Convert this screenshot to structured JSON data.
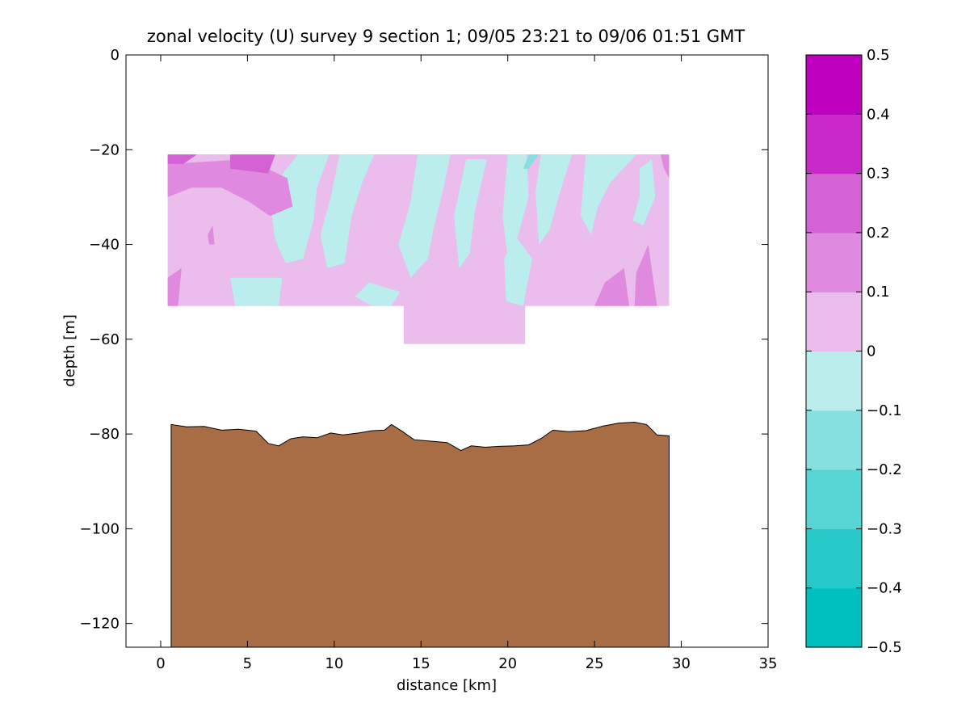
{
  "chart_data": {
    "type": "heatmap",
    "title": "zonal velocity (U) survey 9 section 1; 09/05 23:21 to 09/06 01:51 GMT",
    "xlabel": "distance [km]",
    "ylabel": "depth [m]",
    "xlim": [
      -2,
      35
    ],
    "ylim": [
      -125,
      0
    ],
    "xticks": [
      0,
      5,
      10,
      15,
      20,
      25,
      30,
      35
    ],
    "yticks": [
      0,
      -20,
      -40,
      -60,
      -80,
      -100,
      -120
    ],
    "grid": false,
    "data_extent": {
      "x_range": [
        0.4,
        29.3
      ],
      "depth_range": [
        -21,
        -53
      ],
      "deep_segment_x_range": [
        14,
        21
      ],
      "deep_segment_depth_min": -61
    },
    "background_class_value": 0.05,
    "regions": [
      {
        "value": -0.05,
        "points": [
          [
            14.8,
            -21
          ],
          [
            16.7,
            -21
          ],
          [
            16.3,
            -28
          ],
          [
            15.7,
            -37
          ],
          [
            15.4,
            -43
          ],
          [
            14.4,
            -47
          ],
          [
            13.7,
            -40
          ],
          [
            14.4,
            -31
          ]
        ]
      },
      {
        "value": -0.05,
        "points": [
          [
            10.3,
            -21
          ],
          [
            12.3,
            -21
          ],
          [
            11.6,
            -27
          ],
          [
            11.0,
            -34
          ],
          [
            10.6,
            -44
          ],
          [
            9.6,
            -45
          ],
          [
            9.2,
            -38
          ],
          [
            9.8,
            -30
          ]
        ]
      },
      {
        "value": -0.05,
        "points": [
          [
            6.2,
            -29
          ],
          [
            7.9,
            -21
          ],
          [
            9.7,
            -21
          ],
          [
            9.0,
            -28
          ],
          [
            8.8,
            -35
          ],
          [
            8.2,
            -43
          ],
          [
            7.2,
            -44
          ],
          [
            6.6,
            -39
          ]
        ]
      },
      {
        "value": -0.05,
        "points": [
          [
            17.6,
            -22
          ],
          [
            18.8,
            -22
          ],
          [
            18.1,
            -33
          ],
          [
            17.8,
            -42
          ],
          [
            17.2,
            -45
          ],
          [
            16.9,
            -34
          ]
        ]
      },
      {
        "value": -0.05,
        "points": [
          [
            20.0,
            -21
          ],
          [
            21.1,
            -21
          ],
          [
            21.2,
            -30
          ],
          [
            20.6,
            -38
          ],
          [
            20.0,
            -43
          ],
          [
            19.7,
            -34
          ]
        ]
      },
      {
        "value": -0.05,
        "points": [
          [
            21.9,
            -21
          ],
          [
            23.7,
            -21
          ],
          [
            23.0,
            -29
          ],
          [
            22.4,
            -37
          ],
          [
            21.8,
            -40
          ],
          [
            21.6,
            -29
          ]
        ]
      },
      {
        "value": -0.05,
        "points": [
          [
            24.5,
            -21
          ],
          [
            27.4,
            -21
          ],
          [
            25.9,
            -27
          ],
          [
            25.2,
            -32
          ],
          [
            24.8,
            -38
          ],
          [
            24.2,
            -34
          ]
        ]
      },
      {
        "value": -0.05,
        "points": [
          [
            27.6,
            -24
          ],
          [
            28.3,
            -22
          ],
          [
            28.5,
            -30
          ],
          [
            27.8,
            -36
          ],
          [
            27.2,
            -35
          ],
          [
            27.6,
            -30
          ]
        ]
      },
      {
        "value": -0.05,
        "points": [
          [
            4.0,
            -47
          ],
          [
            7.0,
            -47
          ],
          [
            6.8,
            -53
          ],
          [
            4.3,
            -53
          ]
        ]
      },
      {
        "value": -0.05,
        "points": [
          [
            12.0,
            -48
          ],
          [
            13.8,
            -50
          ],
          [
            13.3,
            -53
          ],
          [
            12.2,
            -53
          ],
          [
            11.2,
            -51
          ]
        ]
      },
      {
        "value": -0.05,
        "points": [
          [
            19.8,
            -43
          ],
          [
            20.4,
            -38
          ],
          [
            21.4,
            -43
          ],
          [
            20.9,
            -53
          ],
          [
            19.9,
            -52
          ]
        ]
      },
      {
        "value": -0.15,
        "points": [
          [
            21.2,
            -21
          ],
          [
            21.8,
            -21
          ],
          [
            21.2,
            -24
          ],
          [
            20.9,
            -24
          ]
        ]
      },
      {
        "value": 0.15,
        "points": [
          [
            0.4,
            -23
          ],
          [
            5.0,
            -22
          ],
          [
            7.3,
            -26
          ],
          [
            7.6,
            -32
          ],
          [
            6.3,
            -34
          ],
          [
            5.1,
            -31
          ],
          [
            3.5,
            -28
          ],
          [
            1.8,
            -28
          ],
          [
            0.4,
            -30
          ]
        ]
      },
      {
        "value": 0.15,
        "points": [
          [
            0.4,
            -47
          ],
          [
            1.2,
            -45
          ],
          [
            1.0,
            -53
          ],
          [
            0.4,
            -53
          ]
        ]
      },
      {
        "value": 0.15,
        "points": [
          [
            25.0,
            -53
          ],
          [
            25.6,
            -48
          ],
          [
            26.7,
            -45
          ],
          [
            27.0,
            -53
          ]
        ]
      },
      {
        "value": 0.15,
        "points": [
          [
            27.3,
            -53
          ],
          [
            27.4,
            -46
          ],
          [
            28.1,
            -40
          ],
          [
            28.6,
            -53
          ]
        ]
      },
      {
        "value": 0.15,
        "points": [
          [
            28.8,
            -21
          ],
          [
            29.3,
            -21
          ],
          [
            29.3,
            -26
          ],
          [
            29.0,
            -24
          ]
        ]
      },
      {
        "value": 0.15,
        "points": [
          [
            2.7,
            -38
          ],
          [
            3.0,
            -36
          ],
          [
            3.1,
            -40
          ],
          [
            2.8,
            -40
          ]
        ]
      },
      {
        "value": 0.25,
        "points": [
          [
            0.4,
            -21
          ],
          [
            2.1,
            -21
          ],
          [
            1.3,
            -23
          ],
          [
            0.4,
            -23
          ]
        ]
      },
      {
        "value": 0.25,
        "points": [
          [
            4.0,
            -21
          ],
          [
            6.6,
            -21
          ],
          [
            6.2,
            -25
          ],
          [
            4.0,
            -24
          ]
        ]
      }
    ],
    "bottom_profile": {
      "x": [
        0.6,
        1.5,
        2.5,
        3.5,
        4.5,
        5.5,
        6.2,
        6.8,
        7.5,
        8.2,
        9.0,
        9.8,
        10.5,
        11.4,
        12.2,
        12.9,
        13.3,
        13.9,
        14.6,
        15.5,
        16.5,
        17.3,
        17.9,
        18.7,
        19.5,
        20.4,
        21.2,
        21.9,
        22.6,
        23.5,
        24.5,
        25.5,
        26.4,
        27.3,
        28.0,
        28.6,
        29.3
      ],
      "depth": [
        -78,
        -78.5,
        -78.4,
        -79.2,
        -79,
        -79.4,
        -82,
        -82.5,
        -81,
        -80.6,
        -80.8,
        -79.8,
        -80.2,
        -79.8,
        -79.3,
        -79.2,
        -78,
        -79.4,
        -81.2,
        -81.5,
        -81.8,
        -83.5,
        -82.5,
        -82.8,
        -82.6,
        -82.5,
        -82.3,
        -81,
        -79.2,
        -79.5,
        -79.3,
        -78.3,
        -77.7,
        -77.5,
        -78,
        -80.2,
        -80.4
      ]
    },
    "colorbar": {
      "ticks": [
        -0.5,
        -0.4,
        -0.3,
        -0.2,
        -0.1,
        0,
        0.1,
        0.2,
        0.3,
        0.4,
        0.5
      ],
      "tick_labels": [
        "−0.5",
        "−0.4",
        "−0.3",
        "−0.2",
        "−0.1",
        "0",
        "0.1",
        "0.2",
        "0.3",
        "0.4",
        "0.5"
      ],
      "colors": [
        "#00BFBF",
        "#27C9C9",
        "#57D5D5",
        "#86E0E0",
        "#BAEDEC",
        "#EABDEC",
        "#E08ADF",
        "#D462D4",
        "#C829C8",
        "#BF00BF"
      ]
    },
    "bottom_color": "#A96D45",
    "tick_labels_x": [
      "0",
      "5",
      "10",
      "15",
      "20",
      "25",
      "30",
      "35"
    ],
    "tick_labels_y": [
      "0",
      "−20",
      "−40",
      "−60",
      "−80",
      "−100",
      "−120"
    ]
  }
}
